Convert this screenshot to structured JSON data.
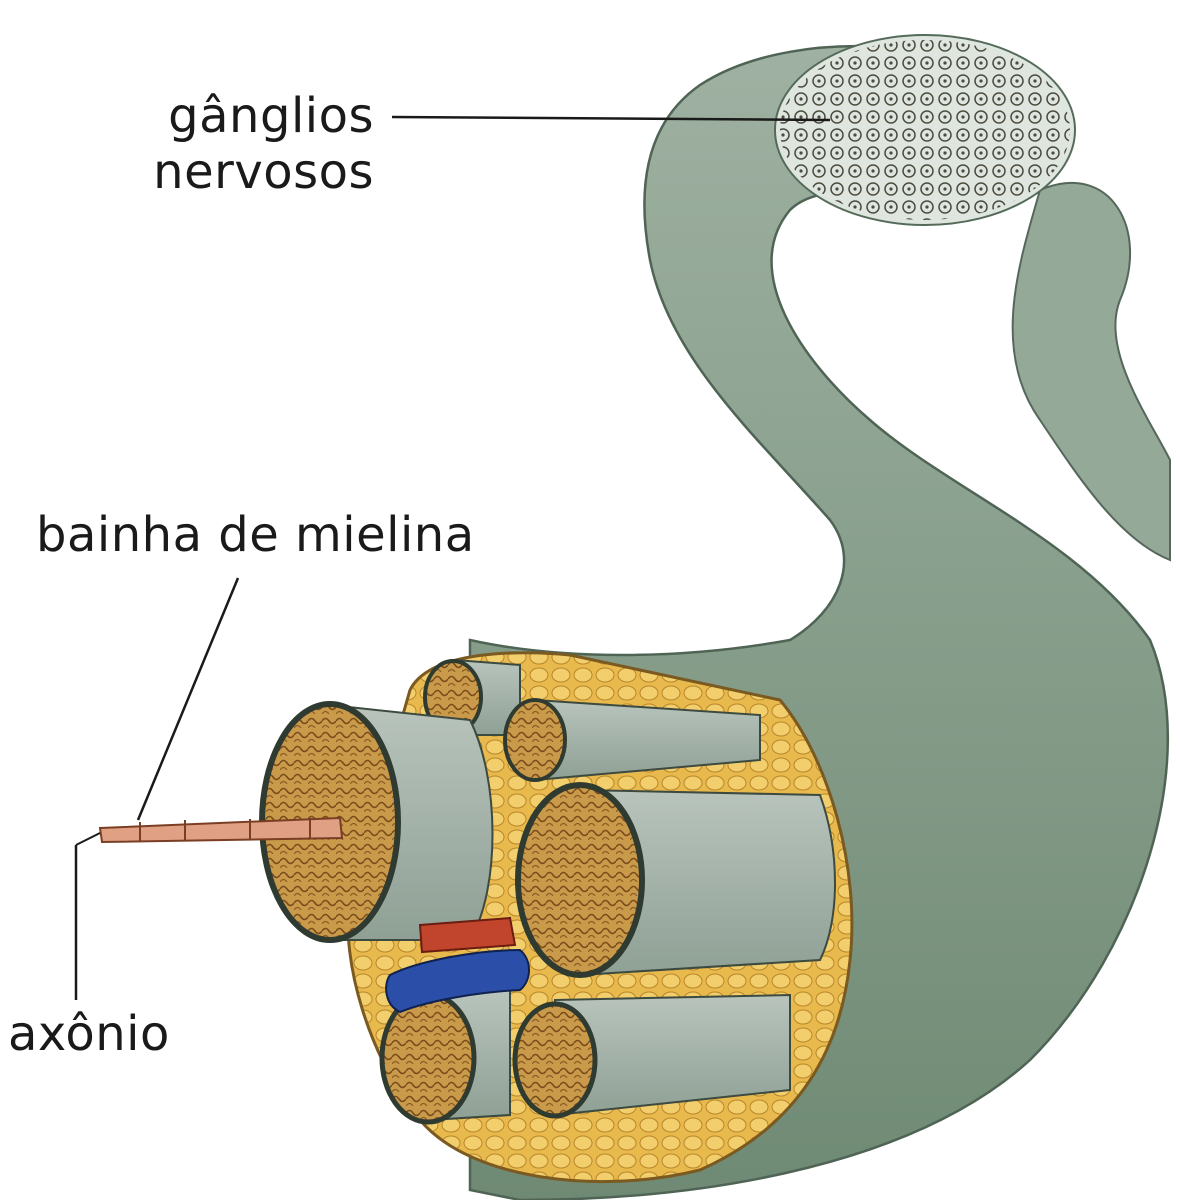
{
  "labels": {
    "ganglios_line1": "gânglios",
    "ganglios_line2": "nervosos",
    "bainha": "bainha de mielina",
    "axonio": "axônio"
  },
  "colors": {
    "nerve_green": "#8a9e8b",
    "fascicle_gray": "#a7b5ad",
    "fascicle_core": "#b47a2c",
    "fat_yellow": "#e3b24a",
    "axon_pink": "#e0a084",
    "artery_red": "#c0452c",
    "vein_blue": "#2b4fa8",
    "ganglion_speckle": "#cfd8d0"
  }
}
